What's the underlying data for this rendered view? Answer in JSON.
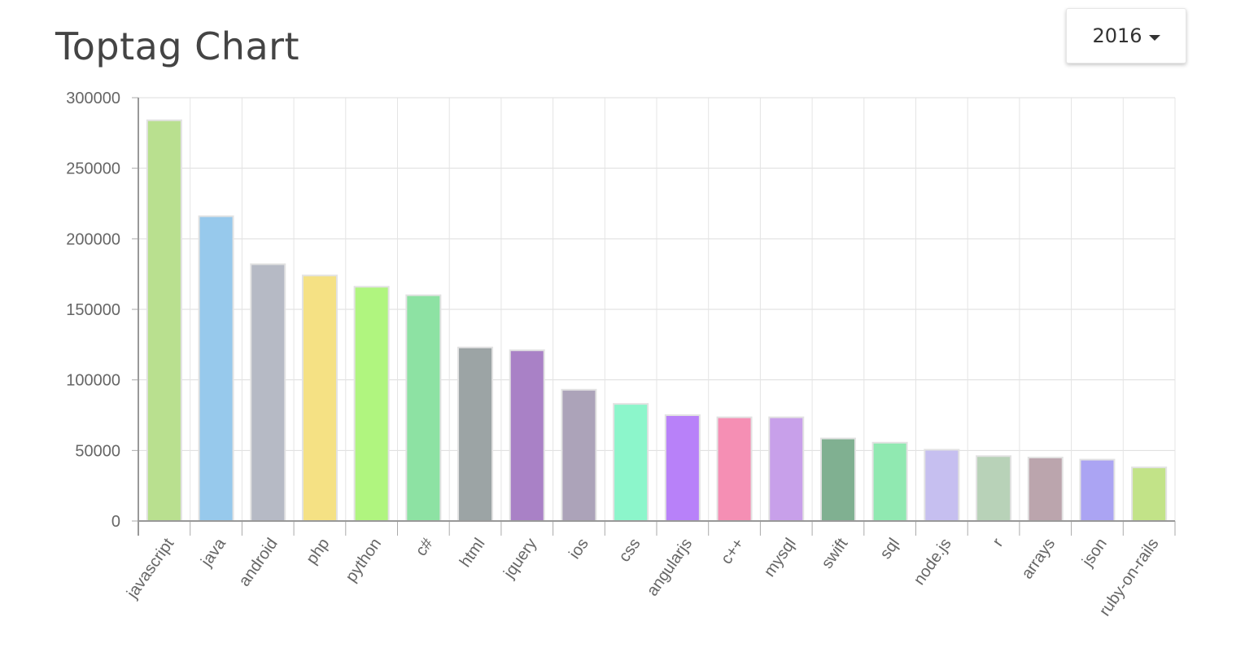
{
  "header": {
    "title": "Toptag Chart"
  },
  "year_select": {
    "value": "2016",
    "icon": "caret-down-icon"
  },
  "chart_data": {
    "type": "bar",
    "categories": [
      "javascript",
      "java",
      "android",
      "php",
      "python",
      "c#",
      "html",
      "jquery",
      "ios",
      "css",
      "angularjs",
      "c++",
      "mysql",
      "swift",
      "sql",
      "node.js",
      "r",
      "arrays",
      "json",
      "ruby-on-rails"
    ],
    "values": [
      284000,
      216000,
      182000,
      174000,
      166000,
      160000,
      123000,
      121000,
      93000,
      83000,
      75000,
      73500,
      73500,
      58500,
      55500,
      50500,
      46000,
      45000,
      43500,
      38000
    ],
    "ylim": [
      0,
      300000
    ],
    "yticks": [
      "0",
      "50000",
      "100000",
      "150000",
      "200000",
      "250000",
      "300000"
    ],
    "grid": true,
    "legend": "none",
    "colors": [
      "#b9e08f",
      "#97c9ec",
      "#b6bac5",
      "#f5e184",
      "#b0f57f",
      "#8de2a3",
      "#9ca4a5",
      "#a981c6",
      "#aca3b9",
      "#8cf6cb",
      "#b881f9",
      "#f58fb4",
      "#c8a0ea",
      "#80b091",
      "#90e9b1",
      "#c6bff0",
      "#b8d2b8",
      "#bba5ad",
      "#aba4f3",
      "#c2e388"
    ]
  }
}
